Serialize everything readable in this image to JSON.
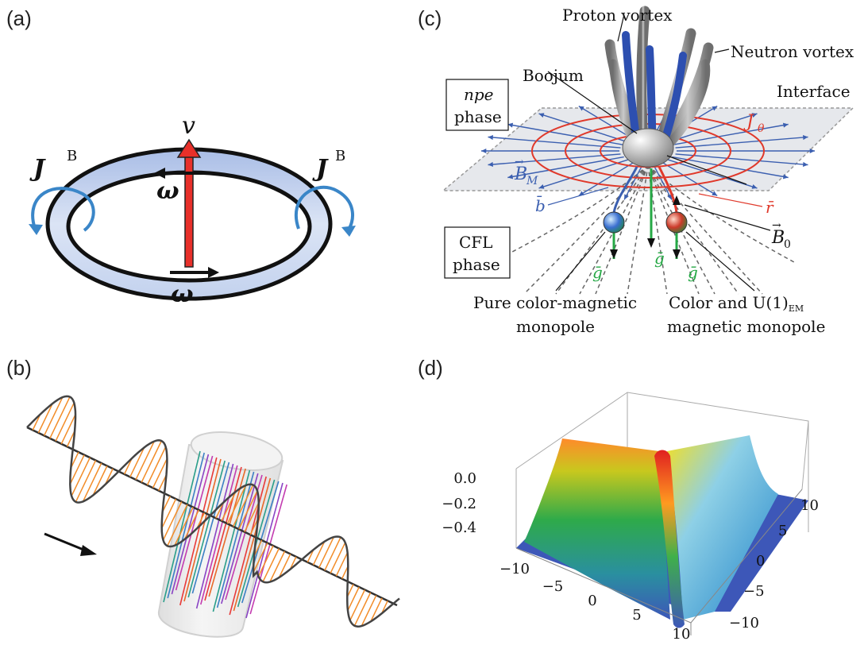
{
  "panels": {
    "a": {
      "label": "(a)",
      "v": "v",
      "j_left": "J",
      "j_left_sup": "B",
      "j_right": "J",
      "j_right_sup": "B",
      "omega_top": "ω",
      "omega_bottom": "ω"
    },
    "b": {
      "label": "(b)"
    },
    "c": {
      "label": "(c)",
      "proton_vortex": "Proton vortex",
      "neutron_vortex": "Neutron vortex",
      "boojum": "Boojum",
      "interface": "Interface",
      "npe_line1": "npe",
      "npe_line2": "phase",
      "cfl_line1": "CFL",
      "cfl_line2": "phase",
      "j_theta": "J",
      "j_theta_sub": "θ",
      "b_m": "B",
      "b_m_sub": "M",
      "b_bar": "b̄",
      "r_bar": "r̄",
      "b_zero": "B",
      "b_zero_sub": "0",
      "g_bar_left": "ḡ",
      "g_bar_mid": "ḡ",
      "g_bar_right": "ḡ",
      "pure_line1": "Pure color-magnetic",
      "pure_line2": "monopole",
      "color_line1": "Color and U(1)",
      "color_line1_sub": "EM",
      "color_line2": "magnetic monopole"
    },
    "d": {
      "label": "(d)",
      "z_ticks": [
        "0.0",
        "−0.2",
        "−0.4"
      ],
      "x_ticks": [
        "−10",
        "−5",
        "0",
        "5",
        "10"
      ],
      "y_ticks": [
        "10",
        "5",
        "0",
        "−5",
        "−10"
      ]
    }
  },
  "colors": {
    "ring_fill": "#c9d6ee",
    "arrow_red": "#e8302a",
    "curl_blue": "#3a86c8",
    "wave_orange": "#f28c28",
    "field_blue": "#3b5fb0",
    "current_red": "#e0392b",
    "gluon_green": "#25a845",
    "vortex_gray": "#8a8a8a",
    "vortex_blue": "#2d4fb0",
    "surface_blue": "#3d57b8"
  }
}
